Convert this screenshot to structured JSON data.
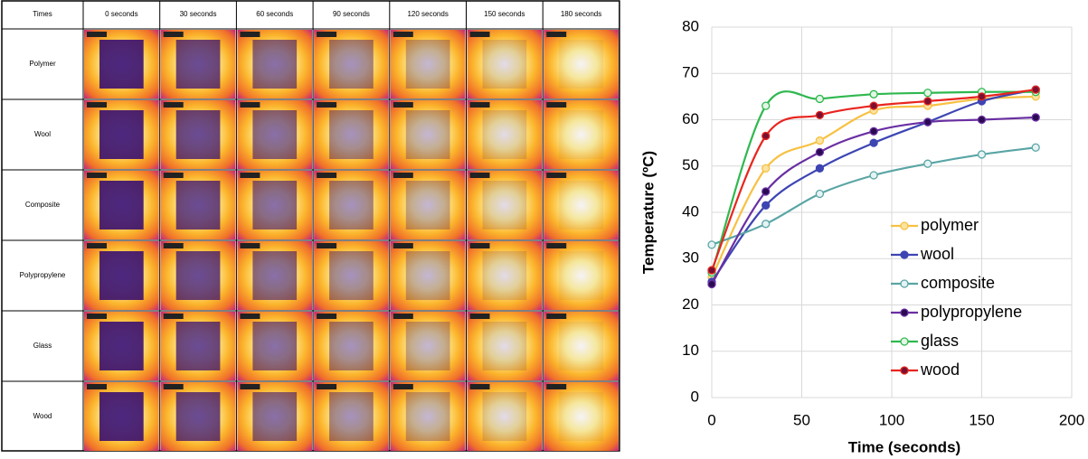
{
  "table": {
    "header": [
      "Times",
      "0 seconds",
      "30 seconds",
      "60 seconds",
      "90 seconds",
      "120 seconds",
      "150 seconds",
      "180 seconds"
    ],
    "rows": [
      "Polymer",
      "Wool",
      "Composite",
      "Polypropylene",
      "Glass",
      "Wood"
    ]
  },
  "chart_data": {
    "type": "line",
    "x": [
      0,
      30,
      60,
      90,
      120,
      150,
      180
    ],
    "xlabel": "Time (seconds)",
    "ylabel": "Temperature (ºC)",
    "xlim": [
      0,
      200
    ],
    "xticks": [
      0,
      50,
      100,
      150,
      200
    ],
    "ylim": [
      0,
      80
    ],
    "yticks": [
      0,
      10,
      20,
      30,
      40,
      50,
      60,
      70,
      80
    ],
    "grid": true,
    "legend": "lower right",
    "smooth": true,
    "series": [
      {
        "name": "polymer",
        "color": "#f7c143",
        "marker_color": "#fbe3a0",
        "values": [
          26,
          49.5,
          55.5,
          62,
          63,
          64.5,
          65
        ]
      },
      {
        "name": "wool",
        "color": "#3d45b3",
        "marker_color": "#3d45b3",
        "values": [
          25,
          41.5,
          49.5,
          55,
          59.5,
          64,
          66.5
        ]
      },
      {
        "name": "composite",
        "color": "#5aa5a5",
        "marker_color": "#e6f3f3",
        "values": [
          33,
          37.5,
          44,
          48,
          50.5,
          52.5,
          54
        ]
      },
      {
        "name": "polypropylene",
        "color": "#6a2fa2",
        "marker_color": "#2a0a50",
        "values": [
          24.5,
          44.5,
          53,
          57.5,
          59.5,
          60,
          60.5
        ]
      },
      {
        "name": "glass",
        "color": "#2fb84f",
        "marker_color": "#e4f6e6",
        "values": [
          27,
          63,
          64.5,
          65.5,
          65.8,
          66,
          66
        ]
      },
      {
        "name": "wood",
        "color": "#e8251f",
        "marker_color": "#7a1030",
        "values": [
          27.5,
          56.5,
          61,
          63,
          64,
          65,
          66.5
        ]
      }
    ]
  }
}
